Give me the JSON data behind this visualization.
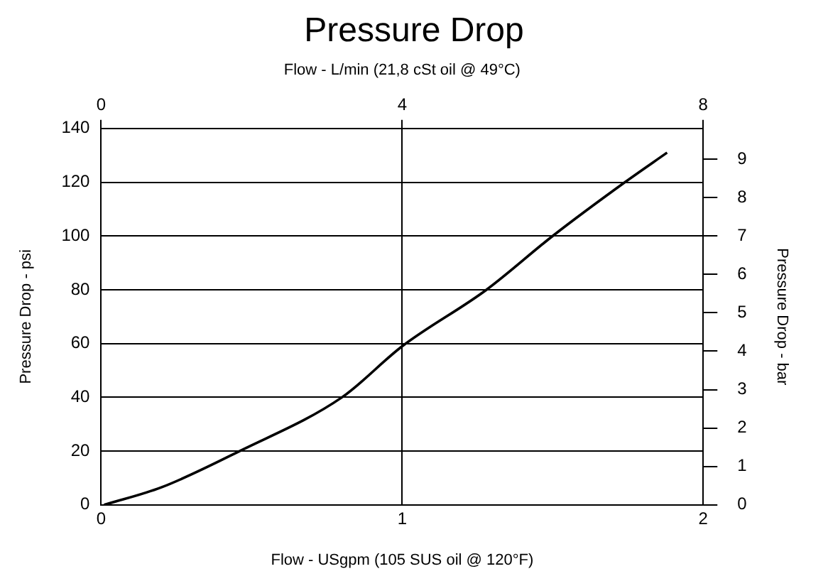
{
  "chart_data": {
    "type": "line",
    "title": "Pressure Drop",
    "x2label": "Flow - L/min (21,8 cSt oil @ 49°C)",
    "xlabel": "Flow - USgpm (105 SUS oil @ 120°F)",
    "ylabel": "Pressure Drop - psi",
    "y2label": "Pressure Drop - bar",
    "x": [
      0.01,
      0.2,
      0.46,
      0.8,
      1.0,
      1.28,
      1.5,
      1.74,
      1.88
    ],
    "series": [
      {
        "color": "#000000",
        "values": [
          0,
          6.5,
          20,
          40,
          59,
          80,
          100,
          120,
          131
        ]
      }
    ],
    "xlim": [
      0,
      2
    ],
    "xticks": [
      0,
      1,
      2
    ],
    "ylim": [
      0,
      140
    ],
    "yticks": [
      0,
      20,
      40,
      60,
      80,
      100,
      120,
      140
    ],
    "x2lim": [
      0,
      8
    ],
    "x2ticks": [
      0,
      4,
      8
    ],
    "y2lim": [
      0,
      9.8
    ],
    "y2ticks": [
      0,
      1,
      2,
      3,
      4,
      5,
      6,
      7,
      8,
      9
    ],
    "grid": true,
    "legend": false,
    "marker": "none",
    "line_style": "solid"
  }
}
